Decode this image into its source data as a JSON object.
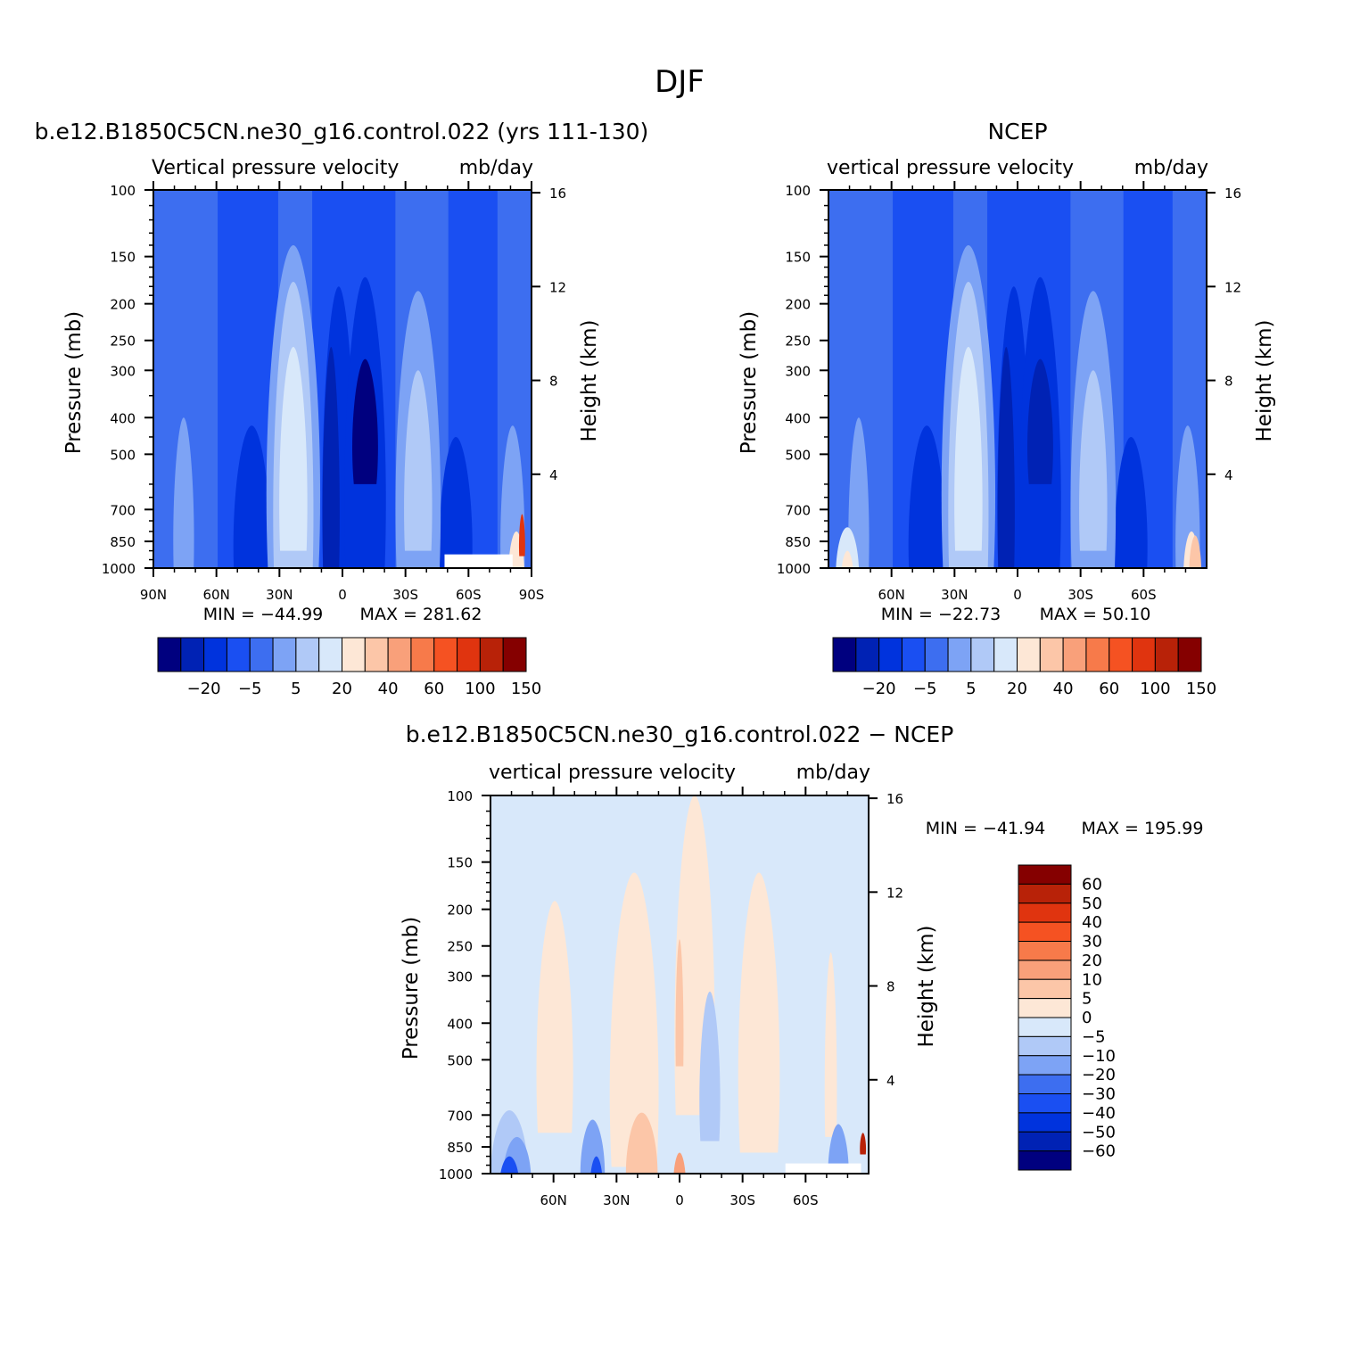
{
  "figure": {
    "title": "DJF"
  },
  "chart_data": [
    {
      "type": "heatmap",
      "title": "b.e12.B1850C5CN.ne30_g16.control.022 (yrs 111-130)",
      "variable_label": "Vertical  pressure  velocity",
      "units": "mb/day",
      "ylabel": "Pressure  (mb)",
      "ylabel_right": "Height  (km)",
      "x_ticks": [
        "90N",
        "60N",
        "30N",
        "0",
        "30S",
        "60S",
        "90S"
      ],
      "y_ticks": [
        "100",
        "150",
        "200",
        "250",
        "300",
        "400",
        "500",
        "700",
        "850",
        "1000"
      ],
      "height_ticks": [
        "16",
        "12",
        "8",
        "4"
      ],
      "min_text": "MIN  =  −44.99",
      "max_text": "MAX  =  281.62",
      "min": -44.99,
      "max": 281.62,
      "colorbar_labels": [
        "−20",
        "−5",
        "5",
        "20",
        "40",
        "60",
        "100",
        "150"
      ],
      "colorbar_orientation": "horizontal"
    },
    {
      "type": "heatmap",
      "title": "NCEP",
      "variable_label": "vertical  pressure  velocity",
      "units": "mb/day",
      "ylabel": "Pressure  (mb)",
      "ylabel_right": "Height  (km)",
      "x_ticks": [
        "60N",
        "30N",
        "0",
        "30S",
        "60S"
      ],
      "y_ticks": [
        "100",
        "150",
        "200",
        "250",
        "300",
        "400",
        "500",
        "700",
        "850",
        "1000"
      ],
      "height_ticks": [
        "16",
        "12",
        "8",
        "4"
      ],
      "min_text": "MIN  =  −22.73",
      "max_text": "MAX  =   50.10",
      "min": -22.73,
      "max": 50.1,
      "colorbar_labels": [
        "−20",
        "−5",
        "5",
        "20",
        "40",
        "60",
        "100",
        "150"
      ],
      "colorbar_orientation": "horizontal"
    },
    {
      "type": "heatmap",
      "title": "b.e12.B1850C5CN.ne30_g16.control.022 − NCEP",
      "variable_label": "vertical  pressure  velocity",
      "units": "mb/day",
      "ylabel": "Pressure  (mb)",
      "ylabel_right": "Height  (km)",
      "x_ticks": [
        "60N",
        "30N",
        "0",
        "30S",
        "60S"
      ],
      "y_ticks": [
        "100",
        "150",
        "200",
        "250",
        "300",
        "400",
        "500",
        "700",
        "850",
        "1000"
      ],
      "height_ticks": [
        "16",
        "12",
        "8",
        "4"
      ],
      "min_text": "MIN  =  −41.94",
      "max_text": "MAX  =  195.99",
      "min": -41.94,
      "max": 195.99,
      "colorbar_labels": [
        "60",
        "50",
        "40",
        "30",
        "20",
        "10",
        "5",
        "0",
        "−5",
        "−10",
        "−20",
        "−30",
        "−40",
        "−50",
        "−60"
      ],
      "colorbar_orientation": "vertical"
    }
  ],
  "colormaps": {
    "abs": [
      "#00007f",
      "#0022b4",
      "#0033dd",
      "#1a4ff2",
      "#3d6ef0",
      "#7da3f5",
      "#b0c9f7",
      "#d8e8fa",
      "#fde7d6",
      "#fcc6a8",
      "#f9a07a",
      "#f77a4a",
      "#f55222",
      "#e0340f",
      "#b82208",
      "#850000"
    ],
    "diff": [
      "#00007f",
      "#0022b4",
      "#0033dd",
      "#1a4ff2",
      "#3d6ef0",
      "#7da3f5",
      "#b0c9f7",
      "#d8e8fa",
      "#fde7d6",
      "#fcc6a8",
      "#f9a07a",
      "#f77a4a",
      "#f55222",
      "#e0340f",
      "#b82208",
      "#850000"
    ]
  }
}
